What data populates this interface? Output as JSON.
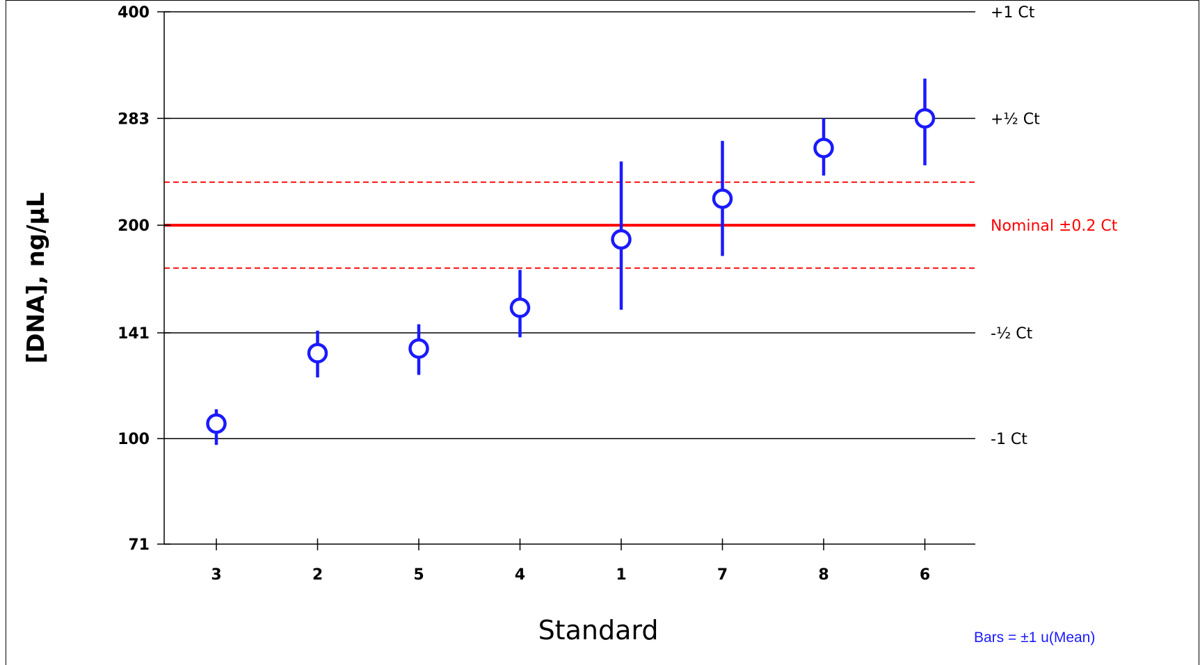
{
  "chart_data": {
    "type": "scatter",
    "title": "",
    "xlabel": "Standard",
    "ylabel": "[DNA], ng/µL",
    "y_scale": "log",
    "ylim": [
      71,
      400
    ],
    "y_ticks": [
      71,
      100,
      141,
      200,
      283,
      400
    ],
    "categories": [
      "3",
      "2",
      "5",
      "4",
      "1",
      "7",
      "8",
      "6"
    ],
    "series": [
      {
        "marker": "open-circle",
        "color": "#1a1aff",
        "values": [
          105,
          132,
          134,
          153,
          191,
          218,
          257,
          283
        ],
        "error_low": [
          98,
          122,
          123,
          139,
          152,
          181,
          235,
          243
        ],
        "error_high": [
          110,
          142,
          145,
          173,
          246,
          263,
          283,
          322
        ]
      }
    ],
    "reference_lines": [
      {
        "value": 400,
        "label": "+1 Ct",
        "color": "#000000",
        "style": "solid"
      },
      {
        "value": 283,
        "label": "+½ Ct",
        "color": "#000000",
        "style": "solid"
      },
      {
        "value": 200,
        "label": "Nominal ±0.2 Ct",
        "color": "#ff0000",
        "style": "thick"
      },
      {
        "value": 141,
        "label": "-½ Ct",
        "color": "#000000",
        "style": "solid"
      },
      {
        "value": 100,
        "label": "-1 Ct",
        "color": "#000000",
        "style": "solid"
      }
    ],
    "tolerance_band": {
      "low": 174,
      "high": 230,
      "color": "#ff0000",
      "style": "dashed"
    },
    "note": "Bars = ±1 u(Mean)",
    "note_color": "#1a1aff"
  }
}
